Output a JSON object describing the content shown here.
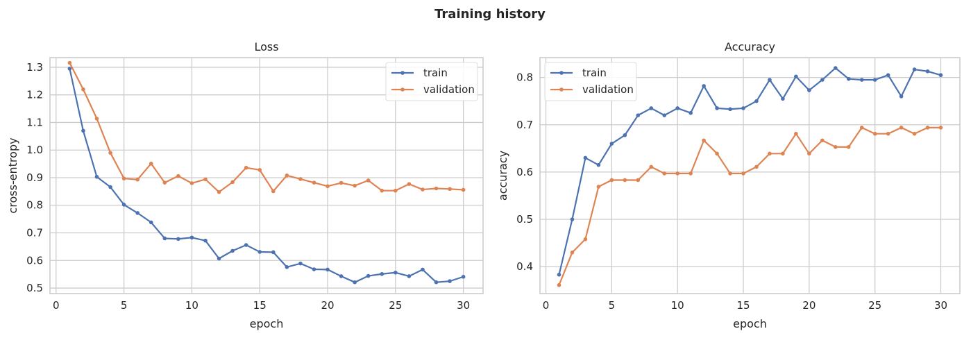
{
  "figure": {
    "title": "Training history"
  },
  "chart_data": [
    {
      "type": "line",
      "title": "Loss",
      "xlabel": "epoch",
      "ylabel": "cross-entropy",
      "xlim": [
        -0.45,
        31.45
      ],
      "ylim": [
        0.48,
        1.335
      ],
      "xticks": [
        0,
        5,
        10,
        15,
        20,
        25,
        30
      ],
      "yticks": [
        0.5,
        0.6,
        0.7,
        0.8,
        0.9,
        1.0,
        1.1,
        1.2,
        1.3
      ],
      "ytick_format": 1,
      "grid": true,
      "legend": "top-right",
      "x": [
        1,
        2,
        3,
        4,
        5,
        6,
        7,
        8,
        9,
        10,
        11,
        12,
        13,
        14,
        15,
        16,
        17,
        18,
        19,
        20,
        21,
        22,
        23,
        24,
        25,
        26,
        27,
        28,
        29,
        30
      ],
      "series": [
        {
          "name": "train",
          "color": "#4c72b0",
          "values": [
            1.295,
            1.07,
            0.903,
            0.866,
            0.802,
            0.772,
            0.738,
            0.68,
            0.678,
            0.683,
            0.672,
            0.607,
            0.635,
            0.656,
            0.631,
            0.63,
            0.576,
            0.589,
            0.568,
            0.567,
            0.543,
            0.521,
            0.544,
            0.551,
            0.556,
            0.543,
            0.567,
            0.521,
            0.525,
            0.541
          ]
        },
        {
          "name": "validation",
          "color": "#dd8452",
          "values": [
            1.316,
            1.22,
            1.114,
            0.99,
            0.897,
            0.893,
            0.951,
            0.882,
            0.906,
            0.88,
            0.894,
            0.848,
            0.884,
            0.936,
            0.928,
            0.851,
            0.908,
            0.895,
            0.882,
            0.869,
            0.881,
            0.871,
            0.89,
            0.853,
            0.853,
            0.877,
            0.857,
            0.861,
            0.859,
            0.856
          ]
        }
      ]
    },
    {
      "type": "line",
      "title": "Accuracy",
      "xlabel": "epoch",
      "ylabel": "accuracy",
      "xlim": [
        -0.45,
        31.45
      ],
      "ylim": [
        0.343,
        0.842
      ],
      "xticks": [
        0,
        5,
        10,
        15,
        20,
        25,
        30
      ],
      "yticks": [
        0.4,
        0.5,
        0.6,
        0.7,
        0.8
      ],
      "ytick_format": 1,
      "grid": true,
      "legend": "top-left",
      "x": [
        1,
        2,
        3,
        4,
        5,
        6,
        7,
        8,
        9,
        10,
        11,
        12,
        13,
        14,
        15,
        16,
        17,
        18,
        19,
        20,
        21,
        22,
        23,
        24,
        25,
        26,
        27,
        28,
        29,
        30
      ],
      "series": [
        {
          "name": "train",
          "color": "#4c72b0",
          "values": [
            0.383,
            0.5,
            0.63,
            0.615,
            0.66,
            0.678,
            0.72,
            0.735,
            0.72,
            0.735,
            0.725,
            0.782,
            0.735,
            0.733,
            0.735,
            0.75,
            0.795,
            0.755,
            0.802,
            0.773,
            0.795,
            0.82,
            0.797,
            0.795,
            0.795,
            0.805,
            0.76,
            0.817,
            0.813,
            0.805
          ]
        },
        {
          "name": "validation",
          "color": "#dd8452",
          "values": [
            0.361,
            0.43,
            0.458,
            0.569,
            0.583,
            0.583,
            0.583,
            0.611,
            0.597,
            0.597,
            0.597,
            0.667,
            0.639,
            0.597,
            0.597,
            0.611,
            0.639,
            0.639,
            0.681,
            0.639,
            0.667,
            0.653,
            0.653,
            0.694,
            0.681,
            0.681,
            0.694,
            0.681,
            0.694,
            0.694
          ]
        }
      ]
    }
  ]
}
